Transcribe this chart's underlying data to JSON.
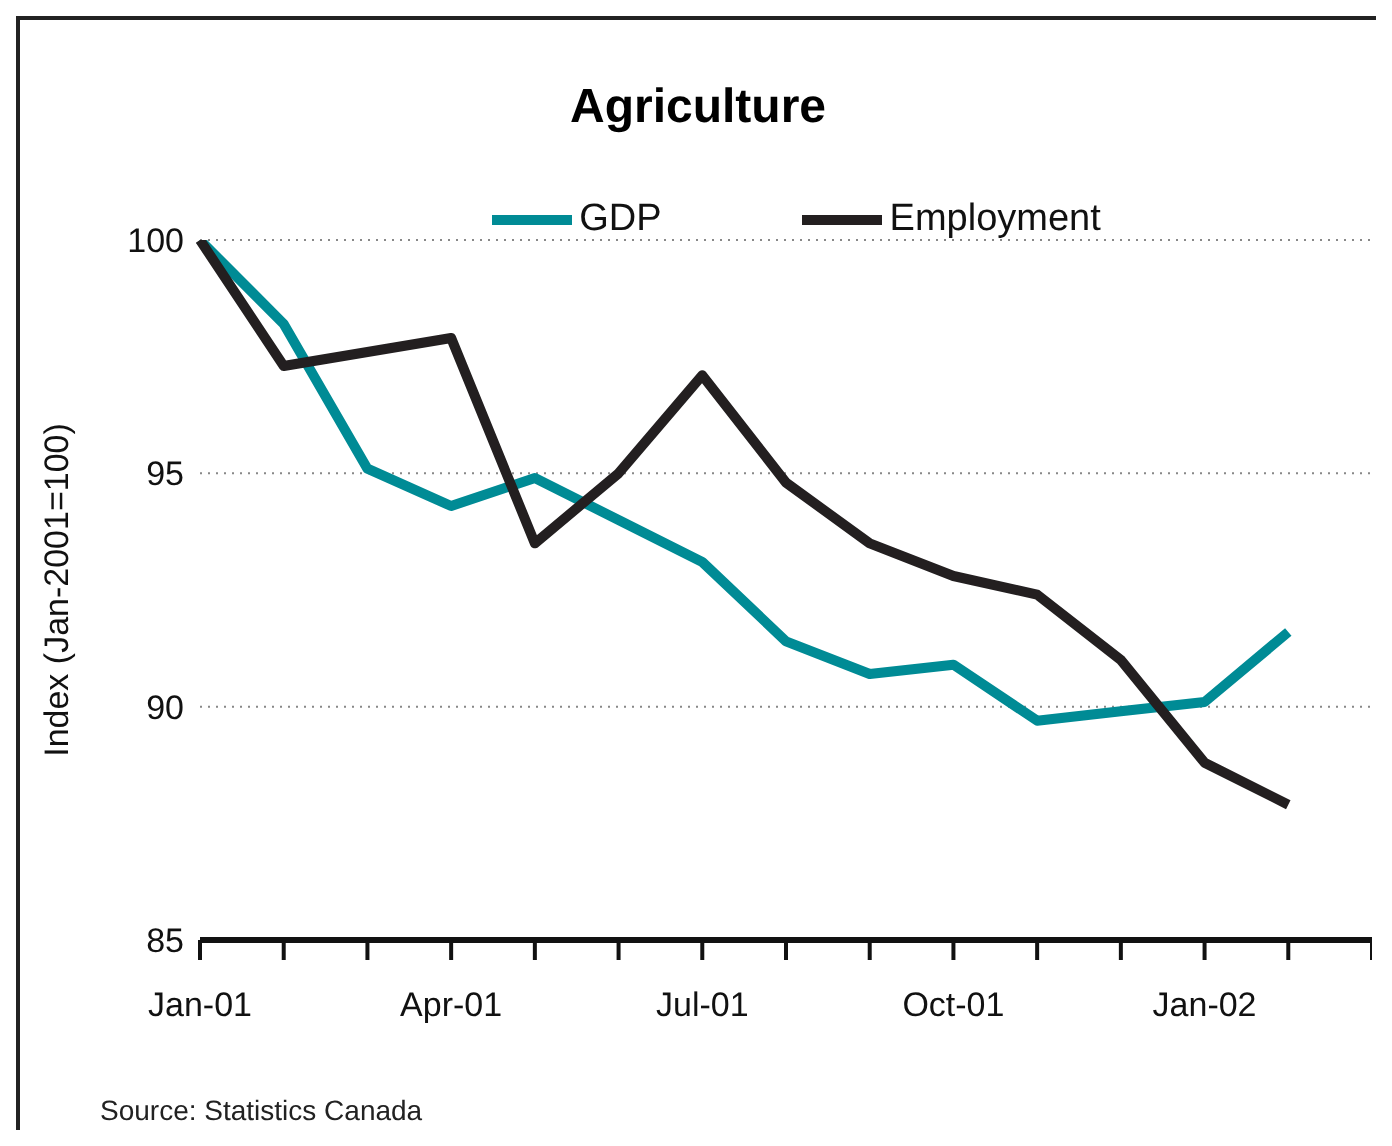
{
  "chart_data": {
    "type": "line",
    "title": "Agriculture",
    "ylabel": "Index (Jan-2001=100)",
    "categories": [
      "Jan-01",
      null,
      null,
      "Apr-01",
      null,
      null,
      "Jul-01",
      null,
      null,
      "Oct-01",
      null,
      null,
      "Jan-02",
      null,
      null
    ],
    "series": [
      {
        "name": "GDP",
        "color": "#008b95",
        "values": [
          100,
          98.2,
          95.1,
          94.3,
          94.9,
          94.0,
          93.1,
          91.4,
          90.7,
          90.9,
          89.7,
          89.9,
          90.1,
          91.6,
          null
        ]
      },
      {
        "name": "Employment",
        "color": "#231f20",
        "values": [
          100,
          97.3,
          97.6,
          97.9,
          93.5,
          95.0,
          97.1,
          94.8,
          93.5,
          92.8,
          92.4,
          91.0,
          88.8,
          87.9,
          null
        ]
      }
    ],
    "ylim": [
      85,
      100
    ],
    "yticks": [
      85,
      90,
      95,
      100
    ],
    "grid": "y",
    "legend": "top",
    "marker": "none",
    "line_style": "solid",
    "annotations": [
      "Source: Statistics Canada"
    ]
  }
}
